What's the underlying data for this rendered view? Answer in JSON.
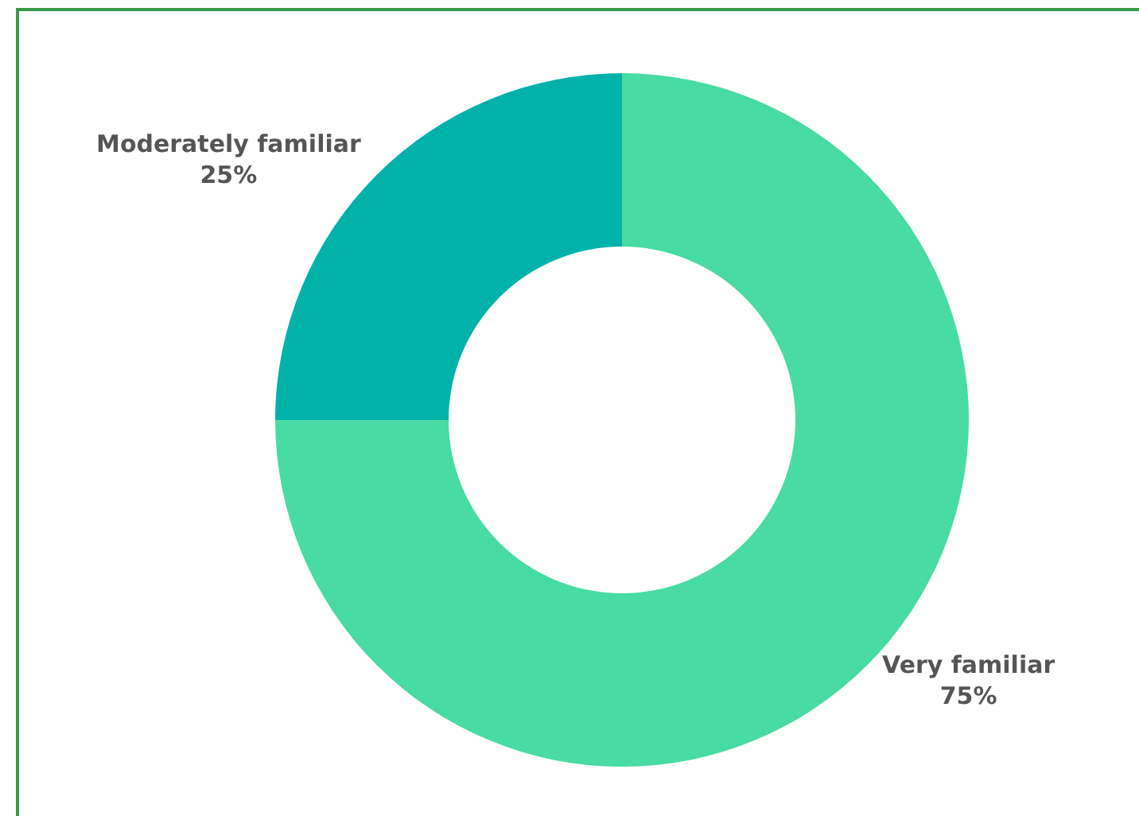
{
  "chart_data": {
    "type": "donut",
    "categories": [
      "Very familiar",
      "Moderately familiar"
    ],
    "values": [
      75,
      25
    ],
    "colors": [
      "#48dba3",
      "#00b2aa"
    ],
    "value_labels": [
      "75%",
      "25%"
    ],
    "legend": false
  }
}
